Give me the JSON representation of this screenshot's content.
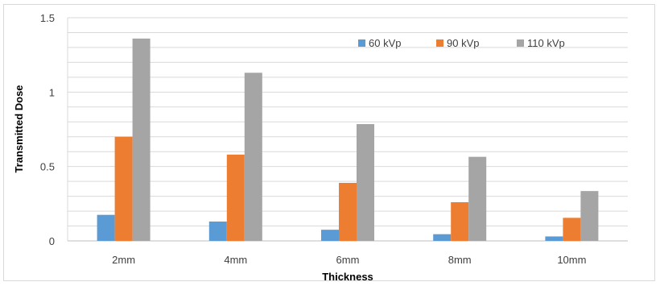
{
  "chart_data": {
    "type": "bar",
    "title": "",
    "xlabel": "Thickness",
    "ylabel": "Transmitted Dose",
    "ylim": [
      0,
      1.5
    ],
    "yticks": [
      "0",
      "0.5",
      "1",
      "1.5"
    ],
    "grid": true,
    "legend_position": "top-right",
    "categories": [
      "2mm",
      "4mm",
      "6mm",
      "8mm",
      "10mm"
    ],
    "series": [
      {
        "name": "60 kVp",
        "color": "#5b9bd5",
        "values": [
          0.175,
          0.13,
          0.075,
          0.045,
          0.03
        ]
      },
      {
        "name": "90 kVp",
        "color": "#ed7d31",
        "values": [
          0.7,
          0.58,
          0.39,
          0.26,
          0.155
        ]
      },
      {
        "name": "110 kVp",
        "color": "#a5a5a5",
        "values": [
          1.36,
          1.13,
          0.785,
          0.565,
          0.335
        ]
      }
    ]
  }
}
